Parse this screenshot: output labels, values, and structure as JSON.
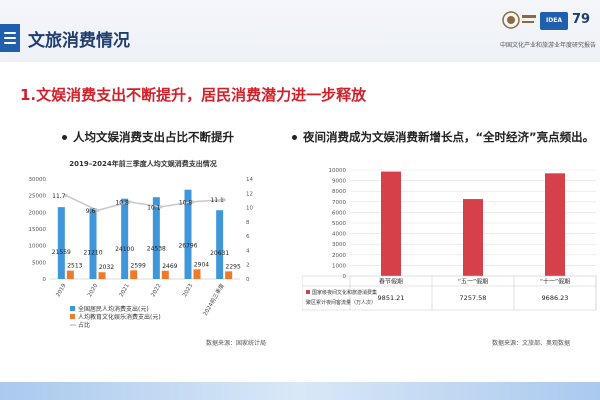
{
  "header": {
    "title": "文旅消费情况",
    "subtitle": "中国文化产业和旅游业年度研究报告",
    "logo_number": "79",
    "logo2_text": "IDEA"
  },
  "section": {
    "title": "1.文娱消费支出不断提升，居民消费潜力进一步释放"
  },
  "bullets": {
    "left": "人均文娱消费支出占比不断提升",
    "right": "夜间消费成为文娱消费新增长点，“全时经济”亮点频出。"
  },
  "sources": {
    "left": "数据来源：国家统计局",
    "right": "数据来源：文旅部、奥观数据"
  },
  "chart_data": [
    {
      "type": "bar",
      "title": "2019–2024年前三季度人均文娱消费支出情况",
      "categories": [
        "2019",
        "2020",
        "2021",
        "2022",
        "2023",
        "2024前三季度"
      ],
      "series": [
        {
          "name": "全国居民人均消费支出(元)",
          "values": [
            21559,
            21210,
            24100,
            24538,
            26796,
            20631
          ],
          "color": "#3f97d9"
        },
        {
          "name": "人均教育文化娱乐消费支出(元)",
          "values": [
            2513,
            2032,
            2599,
            2469,
            2904,
            2295
          ],
          "color": "#ef7b2a"
        },
        {
          "name": "占比",
          "type": "line",
          "values": [
            11.7,
            9.6,
            10.8,
            10.1,
            10.8,
            11.1
          ],
          "color": "#c9c9c9"
        }
      ],
      "ylim": [
        0,
        30000
      ],
      "yticks": [
        "0",
        "5000",
        "10000",
        "15000",
        "20000",
        "25000",
        "30000"
      ],
      "y2lim": [
        0,
        14
      ],
      "y2ticks": [
        "0",
        "2",
        "4",
        "6",
        "8",
        "10",
        "12",
        "14"
      ],
      "point_labels": [
        "11.7",
        "9.6",
        "10.8",
        "10.1",
        "10.8",
        "11.1"
      ],
      "bar1_labels": [
        "21559",
        "21210",
        "24100",
        "24538",
        "26796",
        "20631"
      ],
      "bar2_labels": [
        "2513",
        "2032",
        "2599",
        "2469",
        "2904",
        "2295"
      ],
      "grid": false,
      "legend": "bottom"
    },
    {
      "type": "bar",
      "categories": [
        "春节假期",
        "“五一”假期",
        "“十一”假期"
      ],
      "series": [
        {
          "name": "国家级夜间文化和旅游消费集聚区累计夜间客流量（万人次）",
          "values": [
            9851.21,
            7257.58,
            9686.23
          ],
          "color": "#d64049"
        }
      ],
      "value_labels": [
        "9851.21",
        "7257.58",
        "9686.23"
      ],
      "ylim": [
        0,
        10000
      ],
      "yticks": [
        "0",
        "1000",
        "2000",
        "3000",
        "4000",
        "5000",
        "6000",
        "7000",
        "8000",
        "9000",
        "10000"
      ],
      "grid": true,
      "legend": "bottom-table"
    }
  ]
}
